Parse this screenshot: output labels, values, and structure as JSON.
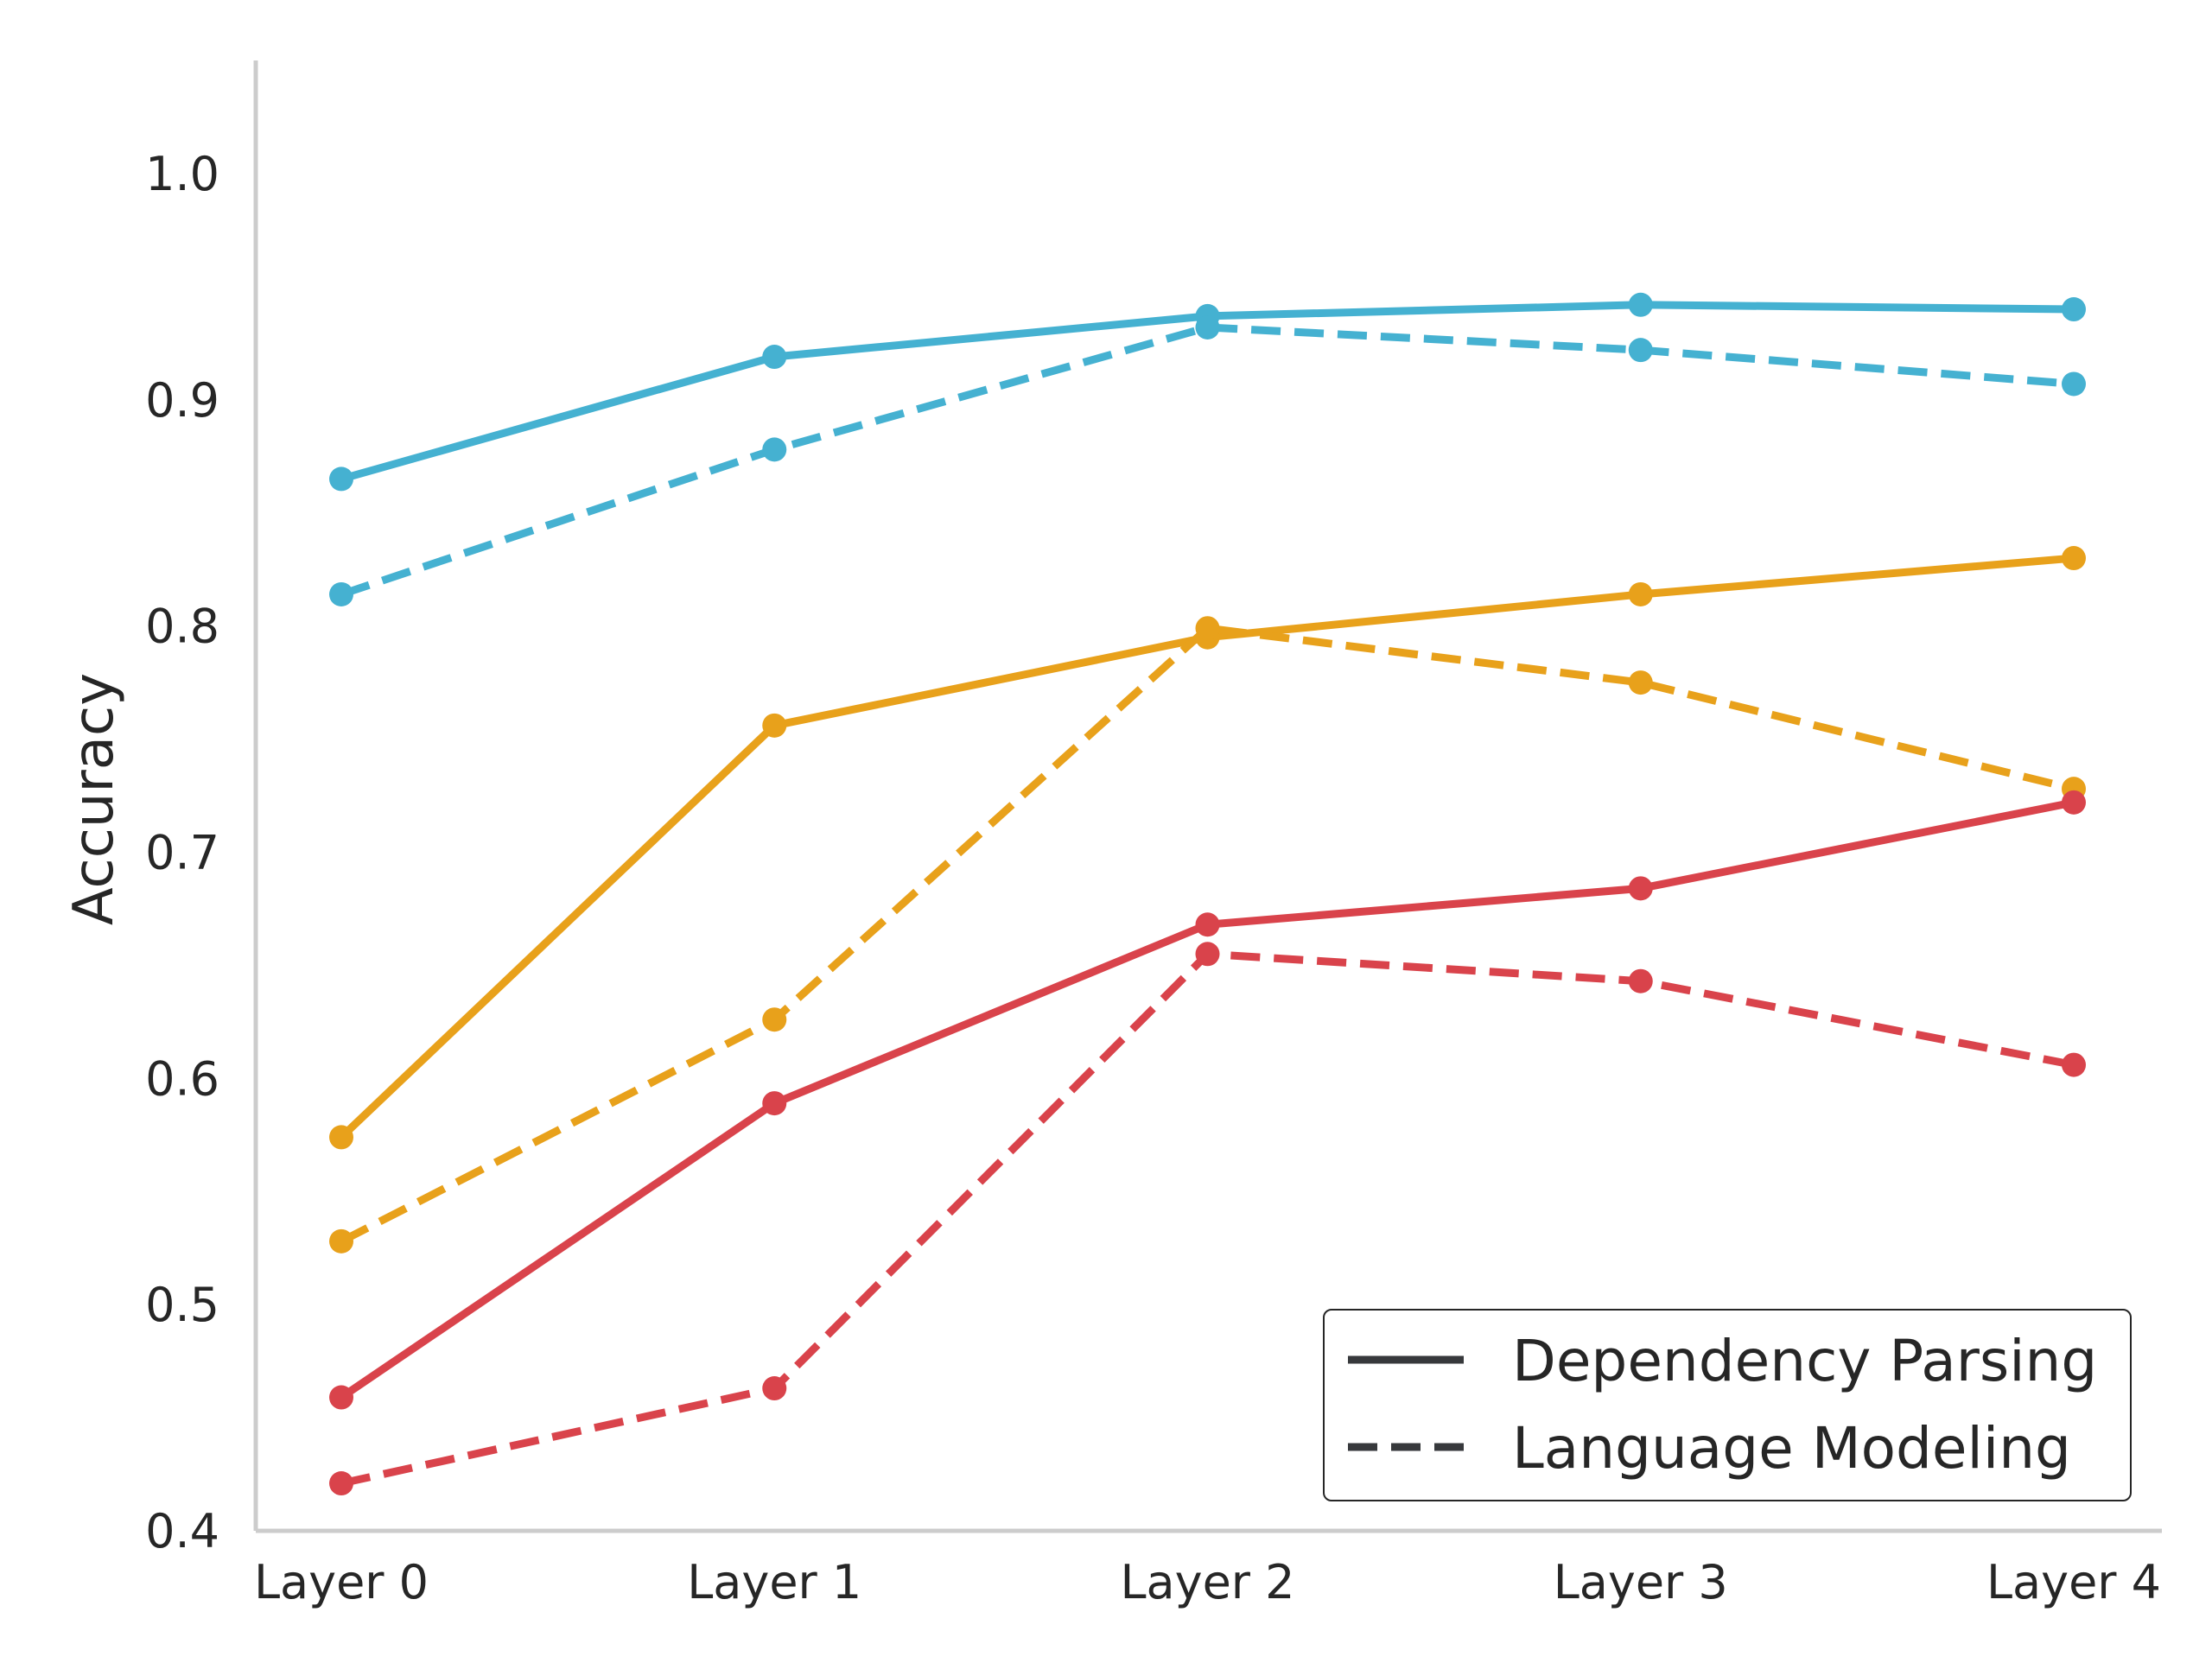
{
  "chart_data": {
    "type": "line",
    "title": "",
    "xlabel": "",
    "ylabel": "Accuracy",
    "categories": [
      "Layer 0",
      "Layer 1",
      "Layer 2",
      "Layer 3",
      "Layer 4"
    ],
    "ylim": [
      0.4,
      1.05
    ],
    "yticks": [
      "0.4",
      "0.5",
      "0.6",
      "0.7",
      "0.8",
      "0.9",
      "1.0"
    ],
    "grid": false,
    "legend_position": "lower-right",
    "legend": [
      {
        "label": "Dependency Parsing",
        "linestyle": "solid"
      },
      {
        "label": "Language Modeling",
        "linestyle": "dashed"
      }
    ],
    "series": [
      {
        "color": "#45b1d1",
        "linestyle": "solid",
        "values": [
          0.865,
          0.919,
          0.937,
          0.942,
          0.94
        ]
      },
      {
        "color": "#45b1d1",
        "linestyle": "dashed",
        "values": [
          0.814,
          0.878,
          0.932,
          0.922,
          0.907
        ]
      },
      {
        "color": "#e8a11b",
        "linestyle": "solid",
        "values": [
          0.574,
          0.756,
          0.795,
          0.814,
          0.83
        ]
      },
      {
        "color": "#e8a11b",
        "linestyle": "dashed",
        "values": [
          0.528,
          0.626,
          0.799,
          0.775,
          0.728
        ]
      },
      {
        "color": "#d9434b",
        "linestyle": "solid",
        "values": [
          0.459,
          0.589,
          0.668,
          0.684,
          0.722
        ]
      },
      {
        "color": "#d9434b",
        "linestyle": "dashed",
        "values": [
          0.421,
          0.463,
          0.655,
          0.643,
          0.606
        ]
      }
    ],
    "legend_line_color": "#37393c"
  }
}
